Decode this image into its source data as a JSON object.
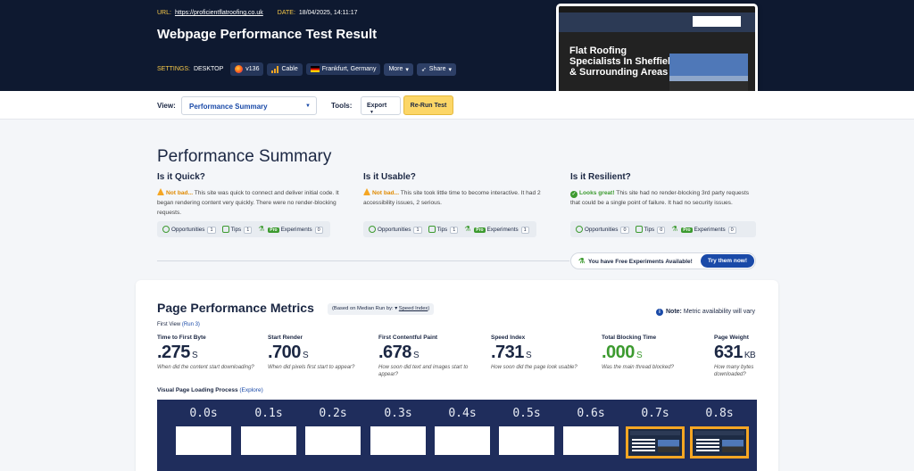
{
  "header": {
    "url_label": "URL:",
    "url": "https://proficientflatroofing.co.uk",
    "date_label": "DATE:",
    "date": "18/04/2025, 14:11:17",
    "title": "Webpage Performance Test Result",
    "settings_label": "SETTINGS:",
    "device": "DESKTOP",
    "browser": "v136",
    "connection": "Cable",
    "location": "Frankfurt, Germany",
    "more": "More",
    "share": "Share"
  },
  "screenshot": {
    "heading": "Flat Roofing Specialists In Sheffield & Surrounding Areas"
  },
  "toolbar": {
    "view_label": "View:",
    "view_value": "Performance Summary",
    "tools_label": "Tools:",
    "export": "Export",
    "rerun": "Re-Run Test"
  },
  "summary": {
    "title": "Performance Summary",
    "quick": {
      "heading": "Is it Quick?",
      "verdict": "Not bad...",
      "text": " This site was quick to connect and deliver initial code. It began rendering content very quickly. There were no render-blocking requests.",
      "opportunities": "1",
      "tips": "1",
      "experiments": "0"
    },
    "usable": {
      "heading": "Is it Usable?",
      "verdict": "Not bad...",
      "text": " This site took little time to become interactive. It had 2 accessibility issues, 2 serious.",
      "opportunities": "1",
      "tips": "1",
      "experiments": "1"
    },
    "resilient": {
      "heading": "Is it Resilient?",
      "verdict": "Looks great!",
      "text": " This site had no render-blocking 3rd party requests that could be a single point of failure. It had no security issues.",
      "opportunities": "0",
      "tips": "0",
      "experiments": "0"
    },
    "labels": {
      "opportunities": "Opportunities",
      "tips": "Tips",
      "pro": "Pro",
      "experiments": "Experiments"
    },
    "free_experiments": "You have Free Experiments Available!",
    "try_button": "Try them now!"
  },
  "metrics": {
    "title": "Page Performance Metrics",
    "median_prefix": "(Based on Median Run by: ",
    "median_metric": "Speed Index",
    "median_suffix": ")",
    "note_label": "Note:",
    "note_text": " Metric availability will vary",
    "first_view": "First View",
    "run": "(Run 3)",
    "items": [
      {
        "label": "Time to First Byte",
        "value": ".275",
        "unit": "S",
        "question": "When did the content start downloading?"
      },
      {
        "label": "Start Render",
        "value": ".700",
        "unit": "S",
        "question": "When did pixels first start to appear?"
      },
      {
        "label": "First Contentful Paint",
        "value": ".678",
        "unit": "S",
        "question": "How soon did text and images start to appear?"
      },
      {
        "label": "Speed Index",
        "value": ".731",
        "unit": "S",
        "question": "How soon did the page look usable?"
      },
      {
        "label": "Total Blocking Time",
        "value": ".000",
        "unit": "S",
        "question": "Was the main thread blocked?"
      },
      {
        "label": "Page Weight",
        "value": "631",
        "unit": "KB",
        "question": "How many bytes downloaded?"
      }
    ],
    "visual_label": "Visual Page Loading Process",
    "explore": "(Explore)",
    "frames": [
      "0.0s",
      "0.1s",
      "0.2s",
      "0.3s",
      "0.4s",
      "0.5s",
      "0.6s",
      "0.7s",
      "0.8s"
    ]
  },
  "colors": {
    "header_bg": "#0e1930",
    "accent": "#1a4aa8",
    "rerun": "#fcd667",
    "good": "#3c9a2f",
    "warn": "#f5a623"
  },
  "icons": [
    "firefox-icon",
    "signal-bars-icon",
    "germany-flag-icon",
    "share-icon",
    "warning-icon",
    "check-icon",
    "info-icon",
    "flask-icon"
  ]
}
